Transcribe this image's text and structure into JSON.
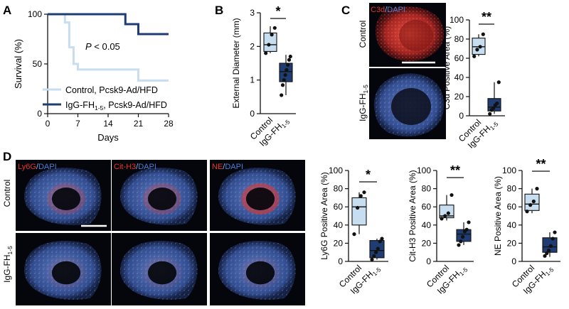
{
  "panels": {
    "A": {
      "letter": "A"
    },
    "B": {
      "letter": "B"
    },
    "C": {
      "letter": "C"
    },
    "D": {
      "letter": "D"
    }
  },
  "panel_a": {
    "pvalue_italic": "P",
    "pvalue_rest": " < 0.05"
  },
  "panel_b": {
    "sig": "*"
  },
  "panel_c": {
    "sig": "**"
  },
  "panel_d": {
    "sig": [
      "*",
      "**",
      "**"
    ]
  },
  "micrographs": {
    "row_labels": {
      "control": "Control",
      "igg_base": "IgG-FH",
      "igg_sub": "1-5"
    },
    "c3d_label": {
      "marker": "C3d",
      "sep": "/",
      "dapi": "DAPI"
    },
    "d_labels": [
      {
        "marker": "Ly6G",
        "sep": "/",
        "dapi": "DAPI"
      },
      {
        "marker": "Cit-H3",
        "sep": "/",
        "dapi": "DAPI"
      },
      {
        "marker": "NE",
        "sep": "/",
        "dapi": "DAPI"
      }
    ]
  },
  "colors": {
    "control": "#c7ddf0",
    "igg": "#1f3d73",
    "marker_red": "#e6332a",
    "dapi_blue": "#4a7fd6",
    "tissue_bg": "#05060b"
  },
  "icons": {
    "scale_bar": "scale-bar"
  },
  "chart_data": [
    {
      "type": "line",
      "panel": "A",
      "title": "",
      "xlabel": "Days",
      "ylabel": "Survival (%)",
      "xlim": [
        0,
        28
      ],
      "ylim": [
        0,
        100
      ],
      "xticks": [
        0,
        7,
        14,
        21,
        28
      ],
      "yticks": [
        0,
        50,
        100
      ],
      "legend": "bottom-left",
      "series": [
        {
          "name_base": "Control, Pcsk9-Ad/HFD",
          "name_sub": "",
          "color": "#c7ddf0",
          "x": [
            0,
            4,
            4,
            5,
            5,
            6,
            6,
            7,
            7,
            21,
            21,
            28
          ],
          "y": [
            100,
            100,
            91.7,
            91.7,
            66.7,
            66.7,
            50,
            50,
            44.4,
            44.4,
            33.3,
            33.3
          ]
        },
        {
          "name_base": "IgG-FH",
          "name_sub": "1-5",
          "name_tail": ", Pcsk9-Ad/HFD",
          "color": "#1f3d73",
          "x": [
            0,
            18,
            18,
            21,
            21,
            28
          ],
          "y": [
            100,
            100,
            90,
            90,
            80,
            80
          ]
        }
      ],
      "annotation": "P < 0.05"
    },
    {
      "type": "box",
      "panel": "B",
      "title": "",
      "xlabel": "",
      "ylabel": "External Diameter (mm)",
      "ylim": [
        0,
        3
      ],
      "yticks": [
        0,
        1,
        2,
        3
      ],
      "categories": [
        {
          "base": "Control",
          "sub": ""
        },
        {
          "base": "IgG-FH",
          "sub": "1-5"
        }
      ],
      "boxes": [
        {
          "min": 1.8,
          "q1": 1.85,
          "median": 2.05,
          "q3": 2.4,
          "max": 2.6,
          "points": [
            1.8,
            2.05,
            2.35,
            2.55
          ],
          "color": "#c7ddf0"
        },
        {
          "min": 0.55,
          "q1": 0.95,
          "median": 1.25,
          "q3": 1.5,
          "max": 1.75,
          "points": [
            0.55,
            0.85,
            1.0,
            1.15,
            1.3,
            1.45,
            1.6,
            1.7
          ],
          "color": "#1f3d73"
        }
      ],
      "significance": "*"
    },
    {
      "type": "box",
      "panel": "C",
      "title": "",
      "xlabel": "",
      "ylabel": "C3d Positive Area (%)",
      "ylim": [
        0,
        100
      ],
      "yticks": [
        0,
        20,
        40,
        60,
        80,
        100
      ],
      "categories": [
        {
          "base": "Control",
          "sub": ""
        },
        {
          "base": "IgG-FH",
          "sub": "1-5"
        }
      ],
      "boxes": [
        {
          "min": 62,
          "q1": 64,
          "median": 72,
          "q3": 81,
          "max": 85,
          "points": [
            62,
            69,
            72,
            85
          ],
          "color": "#c7ddf0"
        },
        {
          "min": 2,
          "q1": 5,
          "median": 9,
          "q3": 18,
          "max": 35,
          "points": [
            2,
            6,
            8,
            11,
            13,
            35
          ],
          "color": "#1f3d73"
        }
      ],
      "significance": "**"
    },
    {
      "type": "box",
      "panel": "D",
      "title": "",
      "xlabel": "",
      "ylabel": "Ly6G Positive Area (%)",
      "ylim": [
        0,
        100
      ],
      "yticks": [
        0,
        20,
        40,
        60,
        80,
        100
      ],
      "categories": [
        {
          "base": "Control",
          "sub": ""
        },
        {
          "base": "IgG-FH",
          "sub": "1-5"
        }
      ],
      "boxes": [
        {
          "min": 30,
          "q1": 40,
          "median": 60,
          "q3": 70,
          "max": 76,
          "points": [
            30,
            59,
            72,
            76
          ],
          "color": "#c7ddf0"
        },
        {
          "min": 2,
          "q1": 4,
          "median": 12,
          "q3": 23,
          "max": 25,
          "points": [
            2,
            6,
            10,
            14,
            22,
            25
          ],
          "color": "#1f3d73"
        }
      ],
      "significance": "*"
    },
    {
      "type": "box",
      "panel": "D",
      "title": "",
      "xlabel": "",
      "ylabel": "Cit-H3 Positive Area (%)",
      "ylim": [
        0,
        100
      ],
      "yticks": [
        0,
        20,
        40,
        60,
        80,
        100
      ],
      "categories": [
        {
          "base": "Control",
          "sub": ""
        },
        {
          "base": "IgG-FH",
          "sub": "1-5"
        }
      ],
      "boxes": [
        {
          "min": 45,
          "q1": 48,
          "median": 50,
          "q3": 62,
          "max": 73,
          "points": [
            47,
            50,
            53,
            73
          ],
          "color": "#c7ddf0"
        },
        {
          "min": 18,
          "q1": 22,
          "median": 30,
          "q3": 35,
          "max": 43,
          "points": [
            18,
            22,
            27,
            33,
            35,
            43
          ],
          "color": "#1f3d73"
        }
      ],
      "significance": "**"
    },
    {
      "type": "box",
      "panel": "D",
      "title": "",
      "xlabel": "",
      "ylabel": "NE Positive Area (%)",
      "ylim": [
        0,
        100
      ],
      "yticks": [
        0,
        20,
        40,
        60,
        80,
        100
      ],
      "categories": [
        {
          "base": "Control",
          "sub": ""
        },
        {
          "base": "IgG-FH",
          "sub": "1-5"
        }
      ],
      "boxes": [
        {
          "min": 53,
          "q1": 56,
          "median": 63,
          "q3": 74,
          "max": 80,
          "points": [
            55,
            62,
            66,
            80
          ],
          "color": "#c7ddf0"
        },
        {
          "min": 5,
          "q1": 10,
          "median": 16,
          "q3": 26,
          "max": 32,
          "points": [
            6,
            9,
            12,
            17,
            25,
            32
          ],
          "color": "#1f3d73"
        }
      ],
      "significance": "**"
    }
  ]
}
